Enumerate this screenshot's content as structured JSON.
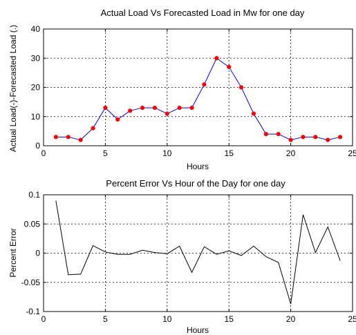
{
  "chart_data": [
    {
      "type": "line",
      "title": "Actual Load Vs Forecasted Load in Mw for one day",
      "xlabel": "Hours",
      "ylabel": "Actual Load(-)-Forecasted Load (.)",
      "xlim": [
        0,
        25
      ],
      "ylim": [
        0,
        40
      ],
      "xticks": [
        "0",
        "5",
        "10",
        "15",
        "20",
        "25"
      ],
      "yticks": [
        "0",
        "10",
        "20",
        "30",
        "40"
      ],
      "grid": true,
      "x": [
        1,
        2,
        3,
        4,
        5,
        6,
        7,
        8,
        9,
        10,
        11,
        12,
        13,
        14,
        15,
        16,
        17,
        18,
        19,
        20,
        21,
        22,
        23,
        24
      ],
      "series": [
        {
          "name": "Actual Load",
          "style": "line",
          "color": "#0000ff",
          "values": [
            3,
            3,
            2,
            6,
            13,
            9,
            12,
            13,
            13,
            11,
            13,
            13,
            21,
            30,
            27,
            20,
            11,
            4,
            4,
            2,
            3,
            3,
            2,
            3
          ]
        },
        {
          "name": "Forecasted Load",
          "style": "markers",
          "color": "#ff0000",
          "values": [
            3,
            3,
            2,
            6,
            13,
            9,
            12,
            13,
            13,
            11,
            13,
            13,
            21,
            30,
            27,
            20,
            11,
            4,
            4,
            2,
            3,
            3,
            2,
            3
          ]
        }
      ]
    },
    {
      "type": "line",
      "title": "Percent Error Vs Hour of the Day for one day",
      "xlabel": "Hours",
      "ylabel": "Percent Error",
      "xlim": [
        0,
        25
      ],
      "ylim": [
        -0.1,
        0.1
      ],
      "xticks": [
        "0",
        "5",
        "10",
        "15",
        "20",
        "25"
      ],
      "yticks": [
        "-0.1",
        "-0.05",
        "0",
        "0.05",
        "0.1"
      ],
      "grid": true,
      "x": [
        1,
        2,
        3,
        4,
        5,
        6,
        7,
        8,
        9,
        10,
        11,
        12,
        13,
        14,
        15,
        16,
        17,
        18,
        19,
        20,
        21,
        22,
        23,
        24
      ],
      "series": [
        {
          "color": "#000000",
          "values": [
            0.09,
            -0.037,
            -0.036,
            0.013,
            0.002,
            -0.002,
            -0.002,
            0.005,
            0.001,
            -0.001,
            0.012,
            -0.033,
            0.011,
            -0.002,
            0.004,
            -0.004,
            0.012,
            -0.006,
            -0.016,
            -0.087,
            0.066,
            0.001,
            0.045,
            -0.013
          ]
        }
      ]
    }
  ]
}
